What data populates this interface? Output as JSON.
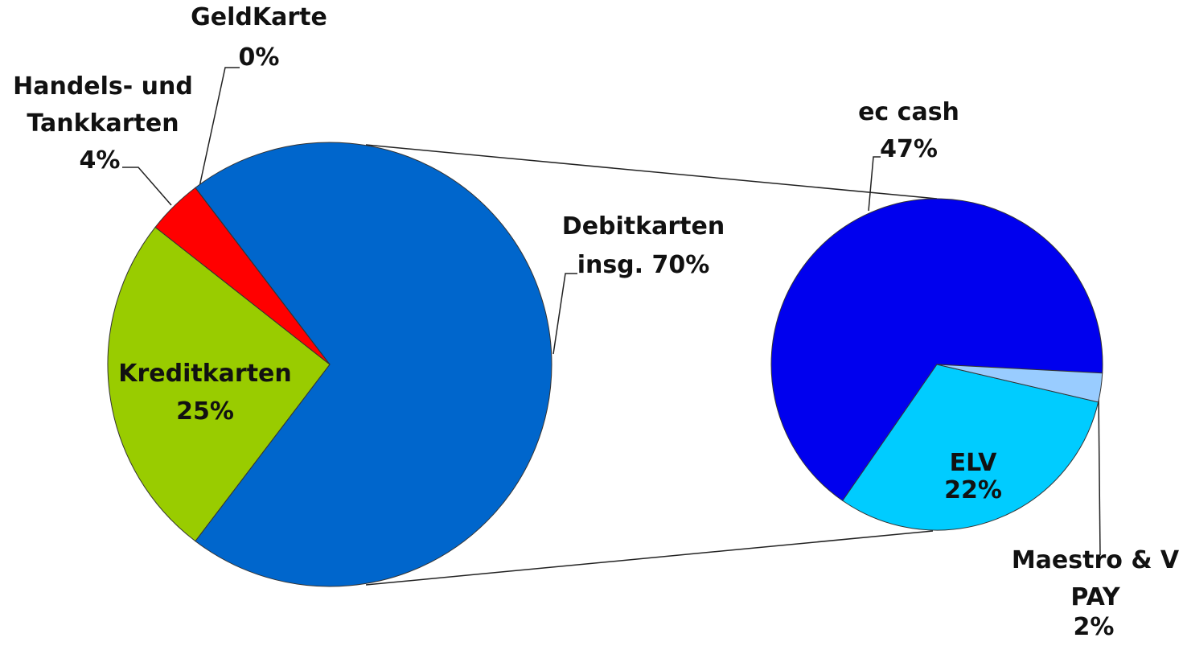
{
  "chart_data": {
    "type": "pie",
    "categories": [
      "Debitkarten",
      "Kreditkarten",
      "Handels- und Tankkarten",
      "GeldKarte"
    ],
    "values": [
      70,
      25,
      4,
      0
    ],
    "value_labels": [
      "insg. 70%",
      "25%",
      "4%",
      "0%"
    ],
    "colors": [
      "#0066cc",
      "#99cc00",
      "#ff0000",
      "#ffcc00"
    ],
    "breakout": "Debitkarten",
    "secondary": {
      "categories": [
        "ec cash",
        "ELV",
        "Maestro & V PAY"
      ],
      "values": [
        47,
        22,
        2
      ],
      "value_labels": [
        "47%",
        "22%",
        "2%"
      ],
      "colors": [
        "#0000ee",
        "#00ccff",
        "#99ccff"
      ]
    }
  }
}
